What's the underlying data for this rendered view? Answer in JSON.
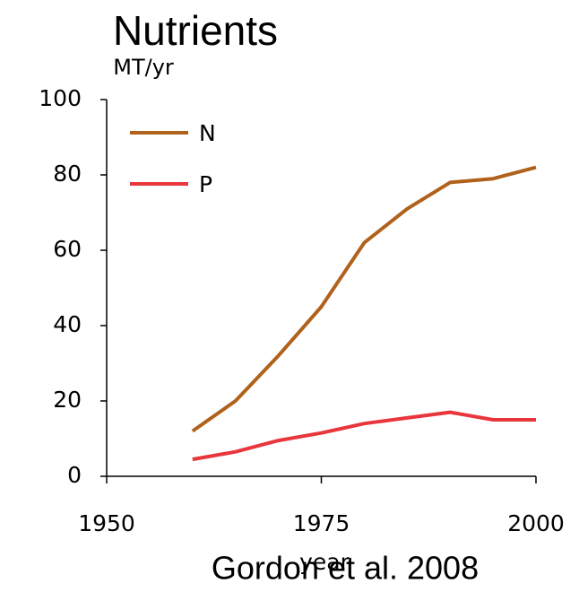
{
  "chart_data": {
    "type": "line",
    "title": "Nutrients",
    "y_label": "MT/yr",
    "x_label": "year",
    "source": "Gordon et al. 2008",
    "x": [
      1960,
      1965,
      1970,
      1975,
      1980,
      1985,
      1990,
      1995,
      2000
    ],
    "series": [
      {
        "name": "N",
        "color": "#b0621c",
        "values": [
          12,
          20,
          32,
          45,
          62,
          71,
          78,
          79,
          82
        ]
      },
      {
        "name": "P",
        "color": "#e8363c",
        "values": [
          4.5,
          6.5,
          9.5,
          11.5,
          14,
          15.5,
          17,
          15,
          15
        ]
      }
    ],
    "xlim": [
      1950,
      2000
    ],
    "xticks": [
      1950,
      1975,
      2000
    ],
    "ylim": [
      0,
      100
    ],
    "yticks": [
      0,
      20,
      40,
      60,
      80,
      100
    ],
    "legend": "upper-left"
  }
}
